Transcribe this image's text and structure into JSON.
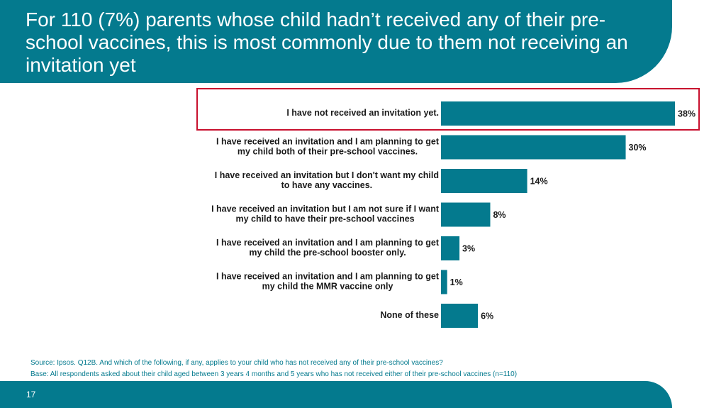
{
  "slide": {
    "title": "For 110 (7%) parents whose child hadn’t received any of their pre-school vaccines, this is most commonly due to them not receiving an invitation yet",
    "source": "Source: Ipsos. Q12B. And which of the following, if any, applies to your child who has not received any of their pre-school vaccines?",
    "base": "Base: All respondents asked about their child aged between 3 years 4 months and 5 years who has not received either of their pre-school vaccines (n=110)",
    "page_number": "17"
  },
  "colors": {
    "brand": "#047a8e",
    "bar": "#047a8e",
    "highlight": "#c8102e"
  },
  "chart_data": {
    "type": "bar",
    "orientation": "horizontal",
    "categories": [
      [
        "I have not received an invitation yet."
      ],
      [
        "I have received an invitation and I am planning to get",
        "my child both of their pre-school vaccines."
      ],
      [
        "I have received an invitation but I don't want my child",
        "to have any vaccines."
      ],
      [
        "I have received an invitation but I am not sure if I want",
        "my child to have their pre-school vaccines"
      ],
      [
        "I have received an invitation and I am planning to get",
        "my child the pre-school booster only."
      ],
      [
        "I have received an invitation and I am planning to get",
        "my child the MMR vaccine only"
      ],
      [
        "None of these"
      ]
    ],
    "values": [
      38,
      30,
      14,
      8,
      3,
      1,
      6
    ],
    "value_labels": [
      "38%",
      "30%",
      "14%",
      "8%",
      "3%",
      "1%",
      "6%"
    ],
    "unit": "%",
    "xlim": [
      0,
      40
    ],
    "grid": false,
    "legend": false,
    "highlighted_category_index": 0
  }
}
